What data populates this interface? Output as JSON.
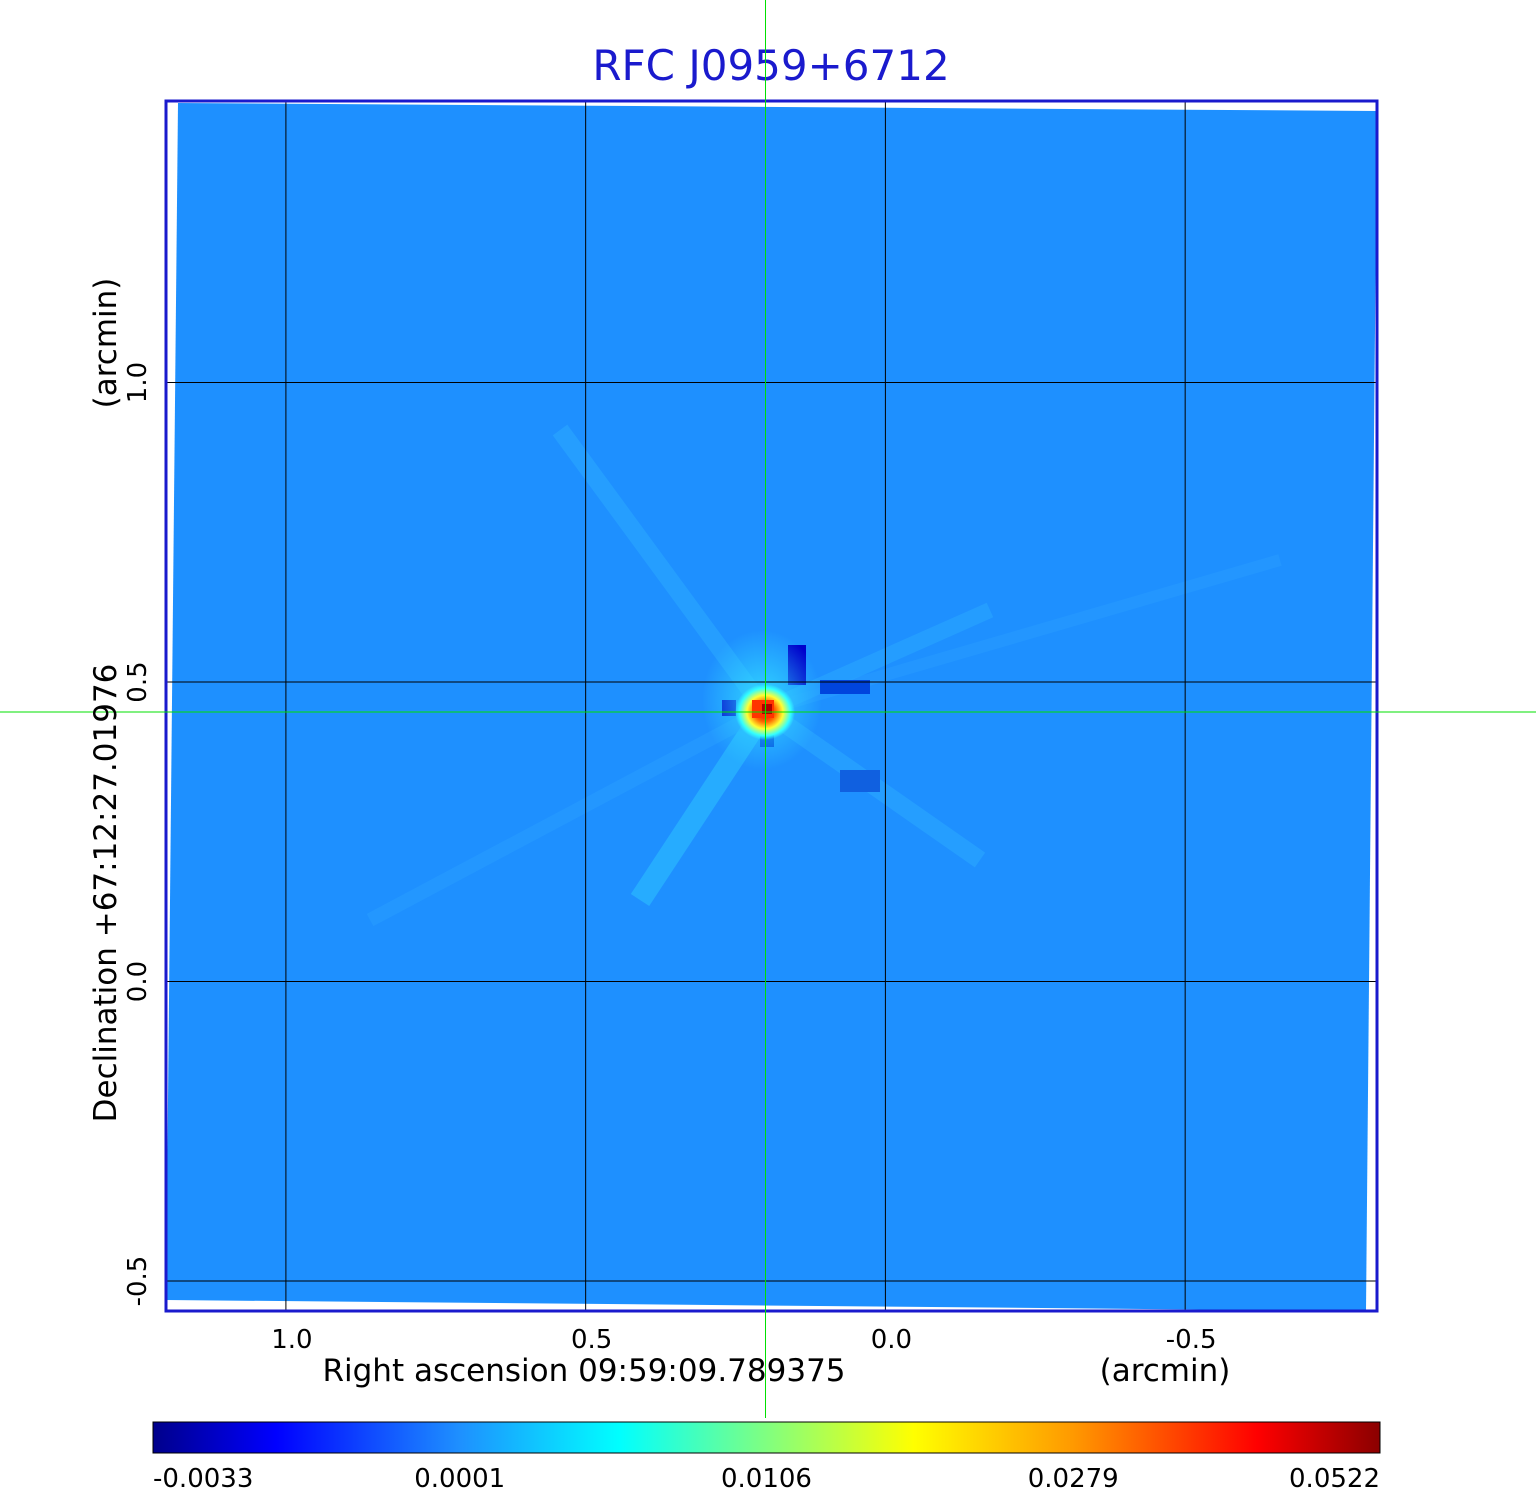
{
  "chart_data": {
    "type": "heatmap",
    "title": "RFC J0959+6712",
    "xlabel": "Right ascension  09:59:09.789375",
    "xlabel_unit": "(arcmin)",
    "ylabel": "Declination  +67:12:27.01976",
    "ylabel_unit": "(arcmin)",
    "x_ticks": [
      "1.0",
      "0.5",
      "0.0",
      "-0.5"
    ],
    "x_tick_values": [
      1.0,
      0.5,
      0.0,
      -0.5
    ],
    "xlim": [
      1.2,
      -0.82
    ],
    "y_ticks": [
      "0.0",
      "0.5",
      "1.0",
      "-0.5"
    ],
    "y_tick_values": [
      0.0,
      0.5,
      1.0,
      -0.5
    ],
    "ylim": [
      -0.55,
      1.47
    ],
    "grid": true,
    "crosshair": {
      "x": 0.2,
      "y": 0.45
    },
    "peak": {
      "x": 0.2,
      "y": 0.45,
      "value": 0.0522
    },
    "colormap": "jet",
    "colorbar": {
      "ticks": [
        "-0.0033",
        "0.0001",
        "0.0106",
        "0.0279",
        "0.0522"
      ],
      "values": [
        -0.0033,
        0.0001,
        0.0106,
        0.0279,
        0.0522
      ]
    },
    "colors": {
      "background_field": "#1e90ff",
      "frame": "#1a1acd",
      "crosshair": "#00e000",
      "grid": "#000000"
    }
  }
}
